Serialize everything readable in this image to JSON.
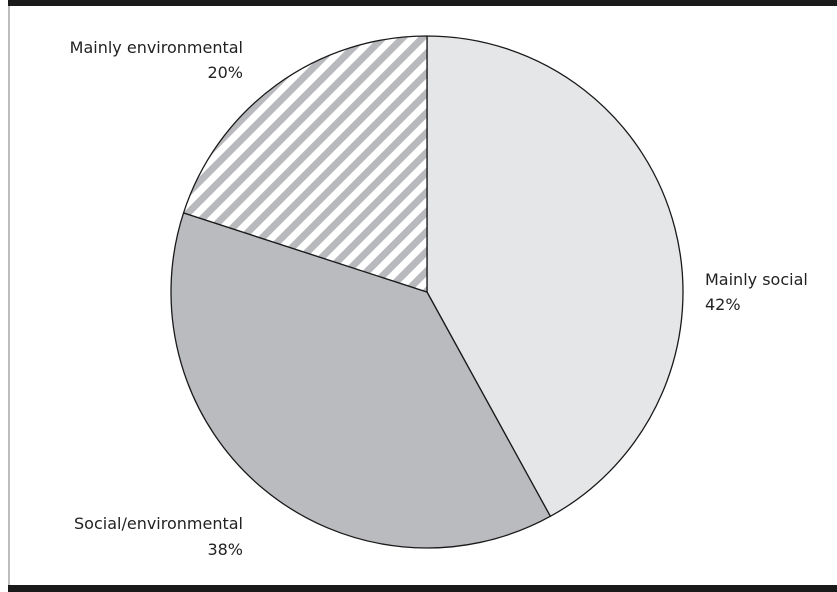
{
  "chart_data": {
    "type": "pie",
    "title": "",
    "slices": [
      {
        "name": "Mainly social",
        "value": 42,
        "label": "42%",
        "color": "#e5e6e8",
        "pattern": "solid"
      },
      {
        "name": "Social/environmental",
        "value": 38,
        "label": "38%",
        "color": "#babbbe",
        "pattern": "solid"
      },
      {
        "name": "Mainly environmental",
        "value": 20,
        "label": "20%",
        "color": "#ffffff",
        "pattern": "diagonal-stripes",
        "stripe_color": "#b8b9bc"
      }
    ],
    "start": "12 o'clock",
    "direction": "clockwise",
    "legend": "none",
    "outline_color": "#1a1a1a"
  }
}
